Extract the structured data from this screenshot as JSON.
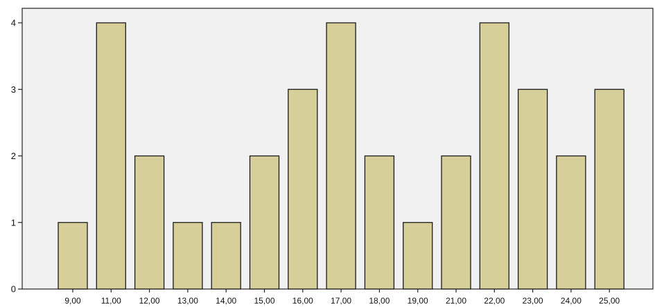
{
  "chart_data": {
    "type": "bar",
    "categories": [
      "9,00",
      "11,00",
      "12,00",
      "13,00",
      "14,00",
      "15,00",
      "16,00",
      "17,00",
      "18,00",
      "19,00",
      "21,00",
      "22,00",
      "23,00",
      "24,00",
      "25,00"
    ],
    "values": [
      1,
      4,
      2,
      1,
      1,
      2,
      3,
      4,
      2,
      1,
      2,
      4,
      3,
      2,
      3
    ],
    "title": "",
    "xlabel": "",
    "ylabel": "",
    "ylim": [
      0,
      4
    ],
    "yticks": [
      0,
      1,
      2,
      3,
      4
    ],
    "grid": false,
    "legend": "none",
    "colors": {
      "bar_fill": "#d7cf9a",
      "bar_stroke": "#1a1a1a",
      "plot_background": "#f1f1f1",
      "axis": "#222222"
    }
  }
}
